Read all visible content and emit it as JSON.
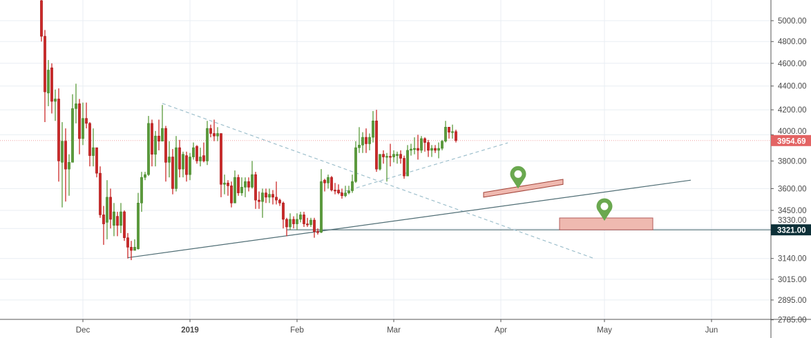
{
  "chart_data": {
    "type": "candlestick",
    "y_scale": "log",
    "grid": true,
    "colors": {
      "up": "#5b9a3c",
      "down": "#cc2a2a",
      "grid": "#e8eef3",
      "trendline": "#4f6d74",
      "dashed_line": "#9dbfcc",
      "zone_fill": "#efb9b0",
      "zone_border": "#a3443a",
      "marker": "#6aa84f",
      "last_price_label": "#e36363",
      "level_label": "#0d3038"
    },
    "y_ticks": [
      "5000.00",
      "4800.00",
      "4600.00",
      "4400.00",
      "4200.00",
      "4000.00",
      "3800.00",
      "3600.00",
      "3450.00",
      "3330.00",
      "3140.00",
      "3015.00",
      "2895.00",
      "2785.00"
    ],
    "x_ticks": [
      {
        "label": "Dec",
        "date": "2018-12-01"
      },
      {
        "label": "2019",
        "date": "2019-01-01",
        "bold": true
      },
      {
        "label": "Feb",
        "date": "2019-02-01"
      },
      {
        "label": "Mar",
        "date": "2019-03-01"
      },
      {
        "label": "Apr",
        "date": "2019-04-01"
      },
      {
        "label": "May",
        "date": "2019-05-01"
      },
      {
        "label": "Jun",
        "date": "2019-06-01"
      }
    ],
    "last_price": {
      "value": 3954.69,
      "label": "3954.69"
    },
    "level": {
      "value": 3321,
      "label": "3321.00",
      "from": "2019-01-29"
    },
    "candles_columns": [
      "date",
      "open",
      "high",
      "low",
      "close"
    ],
    "candles": [
      [
        "2018-11-19",
        5200,
        5260,
        4800,
        4850
      ],
      [
        "2018-11-20",
        4850,
        4910,
        4100,
        4350
      ],
      [
        "2018-11-21",
        4340,
        4630,
        4230,
        4540
      ],
      [
        "2018-11-22",
        4560,
        4600,
        4170,
        4270
      ],
      [
        "2018-11-23",
        4270,
        4370,
        4110,
        4290
      ],
      [
        "2018-11-24",
        4290,
        4380,
        3650,
        3800
      ],
      [
        "2018-11-25",
        3790,
        4100,
        3470,
        3950
      ],
      [
        "2018-11-26",
        3950,
        4050,
        3510,
        3740
      ],
      [
        "2018-11-27",
        3740,
        3850,
        3550,
        3790
      ],
      [
        "2018-11-28",
        3790,
        4330,
        3790,
        4210
      ],
      [
        "2018-11-29",
        4210,
        4420,
        4090,
        4250
      ],
      [
        "2018-11-30",
        4250,
        4290,
        3850,
        3970
      ],
      [
        "2018-12-01",
        3970,
        4260,
        3920,
        4130
      ],
      [
        "2018-12-02",
        4130,
        4260,
        4050,
        4090
      ],
      [
        "2018-12-03",
        4090,
        4100,
        3760,
        3840
      ],
      [
        "2018-12-04",
        3840,
        4050,
        3760,
        3900
      ],
      [
        "2018-12-05",
        3900,
        3900,
        3680,
        3710
      ],
      [
        "2018-12-06",
        3710,
        3760,
        3400,
        3420
      ],
      [
        "2018-12-07",
        3420,
        3480,
        3225,
        3360
      ],
      [
        "2018-12-08",
        3370,
        3660,
        3260,
        3540
      ],
      [
        "2018-12-09",
        3540,
        3600,
        3330,
        3390
      ],
      [
        "2018-12-10",
        3350,
        3500,
        3280,
        3440
      ],
      [
        "2018-12-11",
        3410,
        3440,
        3280,
        3350
      ],
      [
        "2018-12-12",
        3350,
        3500,
        3300,
        3440
      ],
      [
        "2018-12-13",
        3440,
        3450,
        3250,
        3270
      ],
      [
        "2018-12-14",
        3270,
        3300,
        3140,
        3210
      ],
      [
        "2018-12-15",
        3210,
        3250,
        3130,
        3190
      ],
      [
        "2018-12-16",
        3190,
        3260,
        3190,
        3210
      ],
      [
        "2018-12-17",
        3200,
        3570,
        3195,
        3500
      ],
      [
        "2018-12-18",
        3500,
        3720,
        3440,
        3680
      ],
      [
        "2018-12-19",
        3680,
        3720,
        3660,
        3700
      ],
      [
        "2018-12-20",
        3700,
        4150,
        3690,
        4090
      ],
      [
        "2018-12-21",
        4090,
        4120,
        3760,
        3850
      ],
      [
        "2018-12-22",
        3850,
        4030,
        3760,
        3990
      ],
      [
        "2018-12-23",
        3990,
        4120,
        3880,
        3950
      ],
      [
        "2018-12-24",
        3950,
        4240,
        3950,
        4050
      ],
      [
        "2018-12-25",
        4050,
        4070,
        3650,
        3790
      ],
      [
        "2018-12-26",
        3790,
        3950,
        3680,
        3830
      ],
      [
        "2018-12-27",
        3830,
        3890,
        3560,
        3600
      ],
      [
        "2018-12-28",
        3600,
        3990,
        3580,
        3900
      ],
      [
        "2018-12-29",
        3900,
        3960,
        3680,
        3740
      ],
      [
        "2018-12-30",
        3740,
        3870,
        3680,
        3850
      ],
      [
        "2018-12-31",
        3840,
        3870,
        3650,
        3700
      ],
      [
        "2019-01-01",
        3700,
        3860,
        3660,
        3830
      ],
      [
        "2019-01-02",
        3830,
        3940,
        3810,
        3900
      ],
      [
        "2019-01-03",
        3910,
        3920,
        3780,
        3800
      ],
      [
        "2019-01-04",
        3800,
        3900,
        3760,
        3830
      ],
      [
        "2019-01-05",
        3840,
        3940,
        3790,
        3800
      ],
      [
        "2019-01-06",
        3800,
        4110,
        3770,
        4050
      ],
      [
        "2019-01-07",
        4050,
        4080,
        3980,
        4010
      ],
      [
        "2019-01-08",
        4010,
        4120,
        3950,
        3990
      ],
      [
        "2019-01-09",
        3990,
        4060,
        3950,
        4010
      ],
      [
        "2019-01-10",
        4010,
        4010,
        3540,
        3630
      ],
      [
        "2019-01-11",
        3630,
        3700,
        3560,
        3640
      ],
      [
        "2019-01-12",
        3640,
        3660,
        3550,
        3620
      ],
      [
        "2019-01-13",
        3620,
        3650,
        3470,
        3500
      ],
      [
        "2019-01-14",
        3500,
        3730,
        3500,
        3680
      ],
      [
        "2019-01-15",
        3680,
        3700,
        3550,
        3570
      ],
      [
        "2019-01-16",
        3570,
        3680,
        3550,
        3610
      ],
      [
        "2019-01-17",
        3610,
        3680,
        3540,
        3650
      ],
      [
        "2019-01-18",
        3650,
        3680,
        3580,
        3610
      ],
      [
        "2019-01-19",
        3610,
        3800,
        3600,
        3700
      ],
      [
        "2019-01-20",
        3700,
        3720,
        3460,
        3520
      ],
      [
        "2019-01-21",
        3520,
        3580,
        3460,
        3510
      ],
      [
        "2019-01-22",
        3510,
        3600,
        3400,
        3570
      ],
      [
        "2019-01-23",
        3570,
        3600,
        3500,
        3540
      ],
      [
        "2019-01-24",
        3540,
        3600,
        3500,
        3560
      ],
      [
        "2019-01-25",
        3560,
        3590,
        3490,
        3540
      ],
      [
        "2019-01-26",
        3540,
        3650,
        3490,
        3520
      ],
      [
        "2019-01-27",
        3520,
        3530,
        3480,
        3500
      ],
      [
        "2019-01-28",
        3500,
        3510,
        3330,
        3390
      ],
      [
        "2019-01-29",
        3390,
        3400,
        3280,
        3340
      ],
      [
        "2019-01-30",
        3340,
        3430,
        3320,
        3390
      ],
      [
        "2019-01-31",
        3390,
        3410,
        3330,
        3360
      ],
      [
        "2019-02-01",
        3360,
        3430,
        3320,
        3390
      ],
      [
        "2019-02-02",
        3390,
        3440,
        3370,
        3420
      ],
      [
        "2019-02-03",
        3420,
        3440,
        3340,
        3360
      ],
      [
        "2019-02-04",
        3360,
        3400,
        3340,
        3355
      ],
      [
        "2019-02-05",
        3355,
        3400,
        3340,
        3385
      ],
      [
        "2019-02-06",
        3385,
        3400,
        3270,
        3310
      ],
      [
        "2019-02-07",
        3310,
        3330,
        3290,
        3305
      ],
      [
        "2019-02-08",
        3305,
        3740,
        3300,
        3650
      ],
      [
        "2019-02-09",
        3660,
        3670,
        3580,
        3640
      ],
      [
        "2019-02-10",
        3640,
        3700,
        3600,
        3680
      ],
      [
        "2019-02-11",
        3680,
        3690,
        3580,
        3590
      ],
      [
        "2019-02-12",
        3590,
        3640,
        3560,
        3585
      ],
      [
        "2019-02-13",
        3590,
        3630,
        3560,
        3570
      ],
      [
        "2019-02-14",
        3570,
        3600,
        3530,
        3550
      ],
      [
        "2019-02-15",
        3550,
        3620,
        3540,
        3570
      ],
      [
        "2019-02-16",
        3570,
        3620,
        3560,
        3585
      ],
      [
        "2019-02-17",
        3585,
        3700,
        3570,
        3650
      ],
      [
        "2019-02-18",
        3650,
        3950,
        3640,
        3900
      ],
      [
        "2019-02-19",
        3900,
        4060,
        3860,
        3920
      ],
      [
        "2019-02-20",
        3920,
        4020,
        3860,
        3980
      ],
      [
        "2019-02-21",
        3980,
        4050,
        3860,
        3930
      ],
      [
        "2019-02-22",
        3930,
        4010,
        3880,
        3980
      ],
      [
        "2019-02-23",
        3980,
        4190,
        3940,
        4110
      ],
      [
        "2019-02-24",
        4110,
        4200,
        3720,
        3740
      ],
      [
        "2019-02-25",
        3740,
        3850,
        3730,
        3850
      ],
      [
        "2019-02-26",
        3850,
        3880,
        3780,
        3830
      ],
      [
        "2019-02-27",
        3830,
        3860,
        3650,
        3835
      ],
      [
        "2019-02-28",
        3835,
        3930,
        3760,
        3830
      ],
      [
        "2019-03-01",
        3830,
        3880,
        3790,
        3850
      ],
      [
        "2019-03-02",
        3840,
        3870,
        3780,
        3850
      ],
      [
        "2019-03-03",
        3850,
        3880,
        3780,
        3820
      ],
      [
        "2019-03-04",
        3820,
        3840,
        3670,
        3690
      ],
      [
        "2019-03-05",
        3690,
        3920,
        3690,
        3880
      ],
      [
        "2019-03-06",
        3880,
        3930,
        3840,
        3890
      ],
      [
        "2019-03-07",
        3885,
        3980,
        3850,
        3895
      ],
      [
        "2019-03-08",
        3895,
        4000,
        3810,
        3880
      ],
      [
        "2019-03-09",
        3880,
        3990,
        3860,
        3970
      ],
      [
        "2019-03-10",
        3970,
        3980,
        3870,
        3940
      ],
      [
        "2019-03-11",
        3940,
        3960,
        3830,
        3880
      ],
      [
        "2019-03-12",
        3880,
        3920,
        3830,
        3895
      ],
      [
        "2019-03-13",
        3895,
        3920,
        3860,
        3880
      ],
      [
        "2019-03-14",
        3880,
        3940,
        3820,
        3895
      ],
      [
        "2019-03-15",
        3895,
        3960,
        3880,
        3950
      ],
      [
        "2019-03-16",
        3950,
        4110,
        3940,
        4060
      ],
      [
        "2019-03-17",
        4060,
        4060,
        3970,
        4020
      ],
      [
        "2019-03-18",
        4020,
        4080,
        3970,
        4025
      ],
      [
        "2019-03-19",
        4025,
        4040,
        3940,
        3955
      ]
    ],
    "drawings": {
      "rising_trendline": [
        [
          "2018-12-14",
          3145
        ],
        [
          "2019-05-26",
          3660
        ]
      ],
      "descending_dashed_line": [
        [
          "2018-12-24",
          4253
        ],
        [
          "2019-04-28",
          3140
        ]
      ],
      "rising_dashed_line": [
        [
          "2019-02-13",
          3568
        ],
        [
          "2019-04-03",
          3937
        ]
      ],
      "target_zone_1": [
        [
          "2019-03-27",
          3573
        ],
        [
          "2019-04-19",
          3666
        ],
        [
          "2019-04-19",
          3630
        ],
        [
          "2019-03-27",
          3540
        ]
      ],
      "target_zone_2": {
        "from": "2019-04-18",
        "to": "2019-05-15",
        "low": 3321,
        "high": 3399
      },
      "markers": [
        {
          "icon": "map-pin-icon",
          "date": "2019-04-06",
          "price": 3600
        },
        {
          "icon": "map-pin-icon",
          "date": "2019-05-01",
          "price": 3380
        }
      ]
    }
  }
}
